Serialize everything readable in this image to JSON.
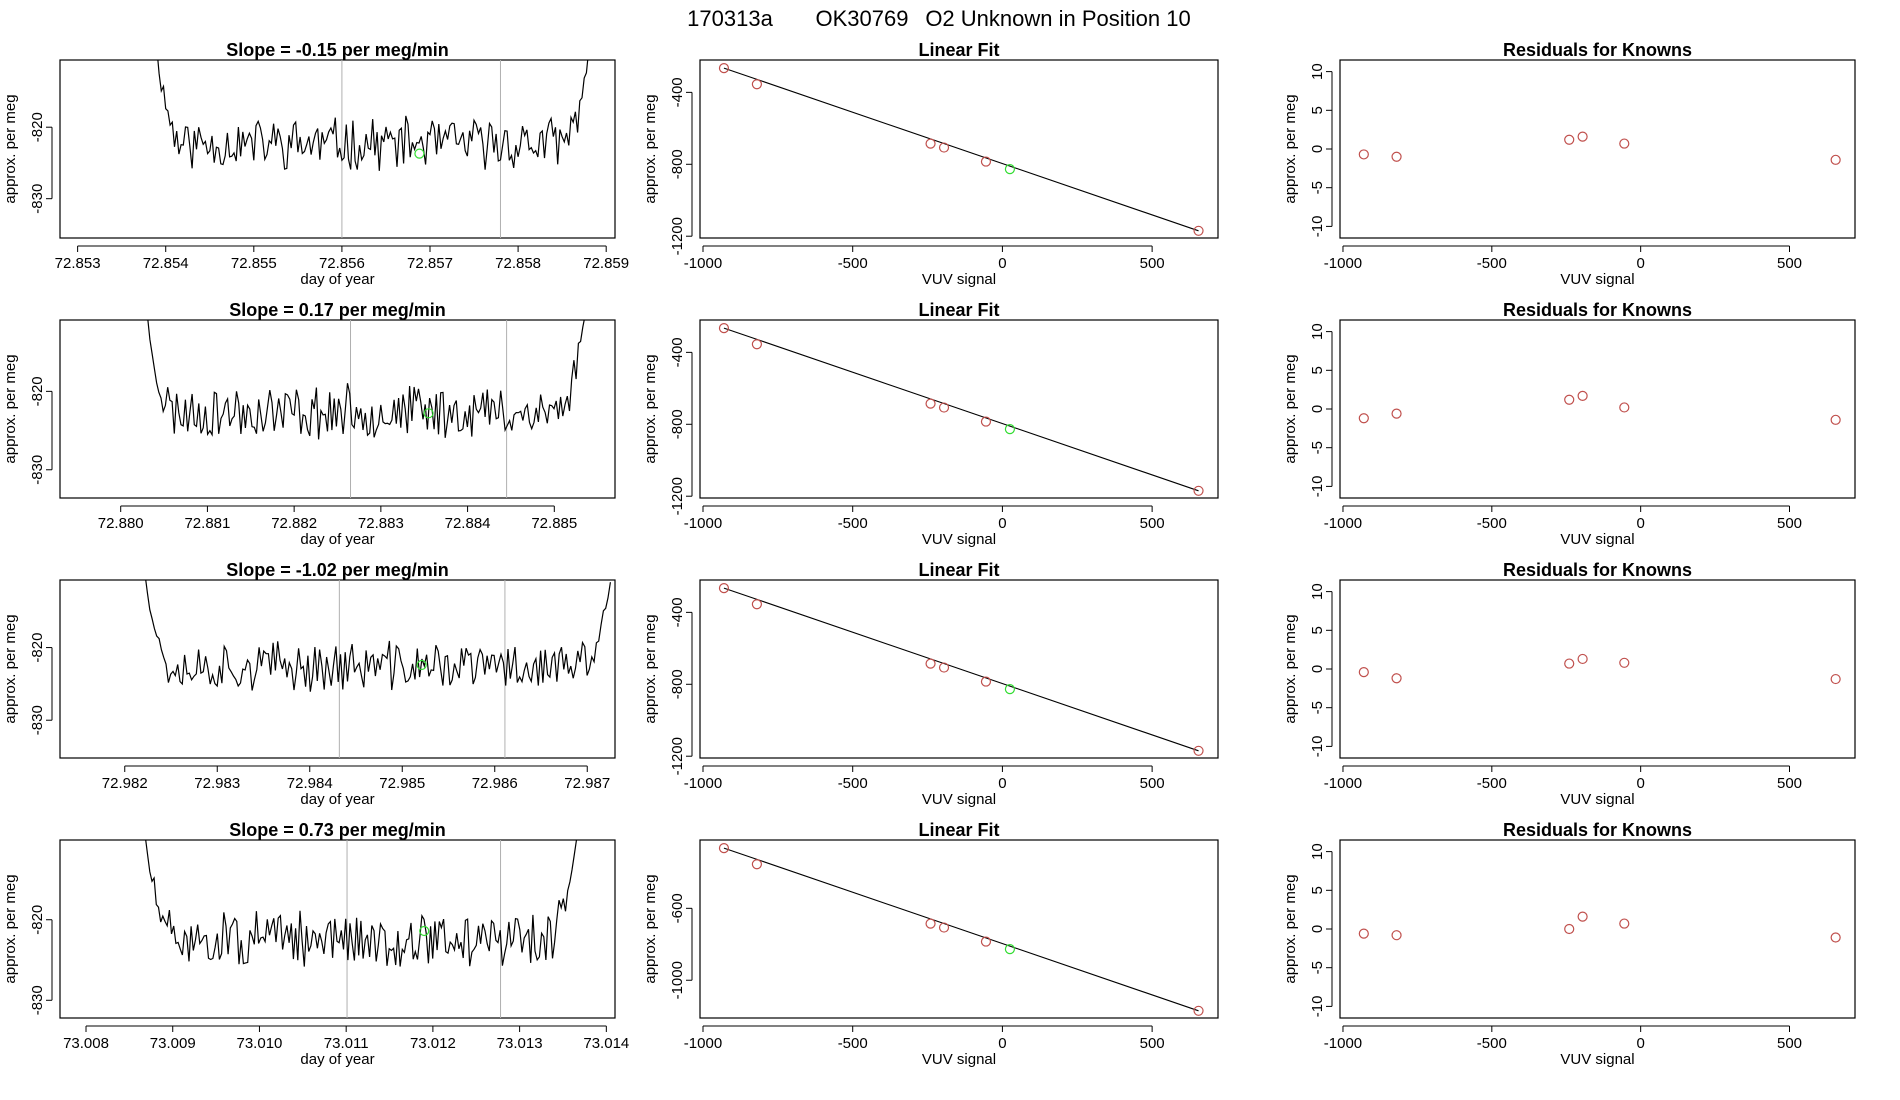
{
  "figure": {
    "title_parts": [
      "170313a",
      "OK30769",
      "O2 Unknown in Position  10"
    ],
    "colors": {
      "trace": "#000000",
      "point_known": "#c0504d",
      "point_unknown": "#33dd33",
      "vline": "#b0b0b0",
      "axis": "#000000"
    }
  },
  "chart_data": [
    {
      "type": "line",
      "title": "Slope =  -0.15  per meg/min",
      "xlabel": "day of year",
      "ylabel": "approx. per meg",
      "xlim": [
        72.8528,
        72.8591
      ],
      "ylim": [
        -835.5,
        -810.6
      ],
      "xticks": [
        72.853,
        72.854,
        72.855,
        72.856,
        72.857,
        72.858,
        72.859
      ],
      "xtick_labels": [
        "72.853",
        "72.854",
        "72.855",
        "72.856",
        "72.857",
        "72.858",
        "72.859"
      ],
      "yticks": [
        -820,
        -830
      ],
      "ytick_labels": [
        "-820",
        "-830"
      ],
      "vlines": [
        72.856,
        72.8578
      ],
      "trace": {
        "start": 72.85385,
        "end": 72.85885,
        "baseline": -822.3,
        "seed": 11,
        "amp": 3.2,
        "start_value": -805.0,
        "end_value": -805.0,
        "edge_fraction": 0.07
      },
      "unknown_point": {
        "x": 72.85688,
        "y": -823.7
      }
    },
    {
      "type": "line",
      "title": "Slope =  0.17  per meg/min",
      "xlabel": "day of year",
      "ylabel": "approx. per meg",
      "xlim": [
        72.8793,
        72.8857
      ],
      "ylim": [
        -833.6,
        -810.9
      ],
      "xticks": [
        72.88,
        72.881,
        72.882,
        72.883,
        72.884,
        72.885
      ],
      "xtick_labels": [
        "72.880",
        "72.881",
        "72.882",
        "72.883",
        "72.884",
        "72.885"
      ],
      "yticks": [
        -820,
        -830
      ],
      "ytick_labels": [
        "-820",
        "-830"
      ],
      "vlines": [
        72.88265,
        72.88445
      ],
      "trace": {
        "start": 72.88026,
        "end": 72.88538,
        "baseline": -822.6,
        "seed": 23,
        "amp": 3.0,
        "start_value": -807.0,
        "end_value": -808.0,
        "edge_fraction": 0.07
      },
      "unknown_point": {
        "x": 72.88355,
        "y": -822.8
      }
    },
    {
      "type": "line",
      "title": "Slope =  -1.02  per meg/min",
      "xlabel": "day of year",
      "ylabel": "approx. per meg",
      "xlim": [
        72.9813,
        72.9873
      ],
      "ylim": [
        -835.2,
        -810.7
      ],
      "xticks": [
        72.982,
        72.983,
        72.984,
        72.985,
        72.986,
        72.987
      ],
      "xtick_labels": [
        "72.982",
        "72.983",
        "72.984",
        "72.985",
        "72.986",
        "72.987"
      ],
      "yticks": [
        -820,
        -830
      ],
      "ytick_labels": [
        "-820",
        "-830"
      ],
      "vlines": [
        72.98432,
        72.98611
      ],
      "trace": {
        "start": 72.98222,
        "end": 72.98725,
        "baseline": -822.6,
        "seed": 37,
        "amp": 3.0,
        "start_value": -810.0,
        "end_value": -811.0,
        "edge_fraction": 0.06
      },
      "unknown_point": {
        "x": 72.98521,
        "y": -822.4
      }
    },
    {
      "type": "line",
      "title": "Slope =  0.73  per meg/min",
      "xlabel": "day of year",
      "ylabel": "approx. per meg",
      "xlim": [
        73.0077,
        73.0141
      ],
      "ylim": [
        -832.2,
        -810.1
      ],
      "xticks": [
        73.008,
        73.009,
        73.01,
        73.011,
        73.012,
        73.013,
        73.014
      ],
      "xtick_labels": [
        "73.008",
        "73.009",
        "73.010",
        "73.011",
        "73.012",
        "73.013",
        "73.014"
      ],
      "yticks": [
        -820,
        -830
      ],
      "ytick_labels": [
        "-820",
        "-830"
      ],
      "vlines": [
        73.01101,
        73.01278
      ],
      "trace": {
        "start": 73.00866,
        "end": 73.01368,
        "baseline": -822.5,
        "seed": 51,
        "amp": 3.0,
        "start_value": -808.0,
        "end_value": -808.0,
        "edge_fraction": 0.07
      },
      "unknown_point": {
        "x": 73.0119,
        "y": -821.4
      }
    },
    {
      "type": "scatter",
      "title": "Linear Fit",
      "xlabel": "VUV signal",
      "ylabel": "approx. per meg",
      "xlim": [
        -1010,
        720
      ],
      "ylim": [
        -1210,
        -220
      ],
      "xticks": [
        -1000,
        -500,
        0,
        500
      ],
      "xtick_labels": [
        "-1000",
        "-500",
        "0",
        "500"
      ],
      "yticks": [
        -400,
        -800,
        -1200
      ],
      "ytick_labels": [
        "-400",
        "-800",
        "-1200"
      ],
      "fit_line": [
        [
          -930,
          -265
        ],
        [
          655,
          -1170
        ]
      ],
      "known_points": [
        [
          -930,
          -265
        ],
        [
          -820,
          -355
        ],
        [
          -240,
          -685
        ],
        [
          -195,
          -707
        ],
        [
          -55,
          -785
        ],
        [
          655,
          -1170
        ]
      ],
      "unknown_points": [
        [
          25,
          -827
        ]
      ]
    },
    {
      "type": "scatter",
      "title": "Linear Fit",
      "xlabel": "VUV signal",
      "ylabel": "approx. per meg",
      "xlim": [
        -1010,
        720
      ],
      "ylim": [
        -1210,
        -220
      ],
      "xticks": [
        -1000,
        -500,
        0,
        500
      ],
      "xtick_labels": [
        "-1000",
        "-500",
        "0",
        "500"
      ],
      "yticks": [
        -400,
        -800,
        -1200
      ],
      "ytick_labels": [
        "-400",
        "-800",
        "-1200"
      ],
      "fit_line": [
        [
          -930,
          -265
        ],
        [
          655,
          -1170
        ]
      ],
      "known_points": [
        [
          -930,
          -265
        ],
        [
          -820,
          -355
        ],
        [
          -240,
          -685
        ],
        [
          -195,
          -707
        ],
        [
          -55,
          -785
        ],
        [
          655,
          -1170
        ]
      ],
      "unknown_points": [
        [
          25,
          -827
        ]
      ]
    },
    {
      "type": "scatter",
      "title": "Linear Fit",
      "xlabel": "VUV signal",
      "ylabel": "approx. per meg",
      "xlim": [
        -1010,
        720
      ],
      "ylim": [
        -1210,
        -220
      ],
      "xticks": [
        -1000,
        -500,
        0,
        500
      ],
      "xtick_labels": [
        "-1000",
        "-500",
        "0",
        "500"
      ],
      "yticks": [
        -400,
        -800,
        -1200
      ],
      "ytick_labels": [
        "-400",
        "-800",
        "-1200"
      ],
      "fit_line": [
        [
          -930,
          -265
        ],
        [
          655,
          -1170
        ]
      ],
      "known_points": [
        [
          -930,
          -265
        ],
        [
          -820,
          -355
        ],
        [
          -240,
          -685
        ],
        [
          -195,
          -707
        ],
        [
          -55,
          -785
        ],
        [
          655,
          -1170
        ]
      ],
      "unknown_points": [
        [
          25,
          -827
        ]
      ]
    },
    {
      "type": "scatter",
      "title": "Linear Fit",
      "xlabel": "VUV signal",
      "ylabel": "approx. per meg",
      "xlim": [
        -1010,
        720
      ],
      "ylim": [
        -1210,
        -220
      ],
      "xticks": [
        -1000,
        -500,
        0,
        500
      ],
      "xtick_labels": [
        "-1000",
        "-500",
        "0",
        "500"
      ],
      "yticks": [
        -600,
        -1000
      ],
      "ytick_labels": [
        "-600",
        "-1000"
      ],
      "fit_line": [
        [
          -930,
          -265
        ],
        [
          655,
          -1170
        ]
      ],
      "known_points": [
        [
          -930,
          -265
        ],
        [
          -820,
          -355
        ],
        [
          -240,
          -685
        ],
        [
          -195,
          -707
        ],
        [
          -55,
          -785
        ],
        [
          655,
          -1170
        ]
      ],
      "unknown_points": [
        [
          25,
          -827
        ]
      ]
    },
    {
      "type": "scatter",
      "title": "Residuals for Knowns",
      "xlabel": "VUV signal",
      "ylabel": "approx. per meg",
      "xlim": [
        -1010,
        720
      ],
      "ylim": [
        -11.5,
        11.5
      ],
      "xticks": [
        -1000,
        -500,
        0,
        500
      ],
      "xtick_labels": [
        "-1000",
        "-500",
        "0",
        "500"
      ],
      "yticks": [
        10,
        5,
        0,
        -5,
        -10
      ],
      "ytick_labels": [
        "10",
        "5",
        "0",
        "-5",
        "-10"
      ],
      "known_points": [
        [
          -930,
          -0.7
        ],
        [
          -820,
          -1.0
        ],
        [
          -240,
          1.2
        ],
        [
          -195,
          1.6
        ],
        [
          -55,
          0.7
        ],
        [
          655,
          -1.4
        ]
      ]
    },
    {
      "type": "scatter",
      "title": "Residuals for Knowns",
      "xlabel": "VUV signal",
      "ylabel": "approx. per meg",
      "xlim": [
        -1010,
        720
      ],
      "ylim": [
        -11.5,
        11.5
      ],
      "xticks": [
        -1000,
        -500,
        0,
        500
      ],
      "xtick_labels": [
        "-1000",
        "-500",
        "0",
        "500"
      ],
      "yticks": [
        10,
        5,
        0,
        -5,
        -10
      ],
      "ytick_labels": [
        "10",
        "5",
        "0",
        "-5",
        "-10"
      ],
      "known_points": [
        [
          -930,
          -1.2
        ],
        [
          -820,
          -0.6
        ],
        [
          -240,
          1.2
        ],
        [
          -195,
          1.7
        ],
        [
          -55,
          0.2
        ],
        [
          655,
          -1.4
        ]
      ]
    },
    {
      "type": "scatter",
      "title": "Residuals for Knowns",
      "xlabel": "VUV signal",
      "ylabel": "approx. per meg",
      "xlim": [
        -1010,
        720
      ],
      "ylim": [
        -11.5,
        11.5
      ],
      "xticks": [
        -1000,
        -500,
        0,
        500
      ],
      "xtick_labels": [
        "-1000",
        "-500",
        "0",
        "500"
      ],
      "yticks": [
        10,
        5,
        0,
        -5,
        -10
      ],
      "ytick_labels": [
        "10",
        "5",
        "0",
        "-5",
        "-10"
      ],
      "known_points": [
        [
          -930,
          -0.4
        ],
        [
          -820,
          -1.2
        ],
        [
          -240,
          0.7
        ],
        [
          -195,
          1.3
        ],
        [
          -55,
          0.8
        ],
        [
          655,
          -1.3
        ]
      ]
    },
    {
      "type": "scatter",
      "title": "Residuals for Knowns",
      "xlabel": "VUV signal",
      "ylabel": "approx. per meg",
      "xlim": [
        -1010,
        720
      ],
      "ylim": [
        -11.5,
        11.5
      ],
      "xticks": [
        -1000,
        -500,
        0,
        500
      ],
      "xtick_labels": [
        "-1000",
        "-500",
        "0",
        "500"
      ],
      "yticks": [
        10,
        5,
        0,
        -5,
        -10
      ],
      "ytick_labels": [
        "10",
        "5",
        "0",
        "-5",
        "-10"
      ],
      "known_points": [
        [
          -930,
          -0.6
        ],
        [
          -820,
          -0.8
        ],
        [
          -240,
          0.0
        ],
        [
          -195,
          1.6
        ],
        [
          -55,
          0.7
        ],
        [
          655,
          -1.1
        ]
      ]
    }
  ]
}
